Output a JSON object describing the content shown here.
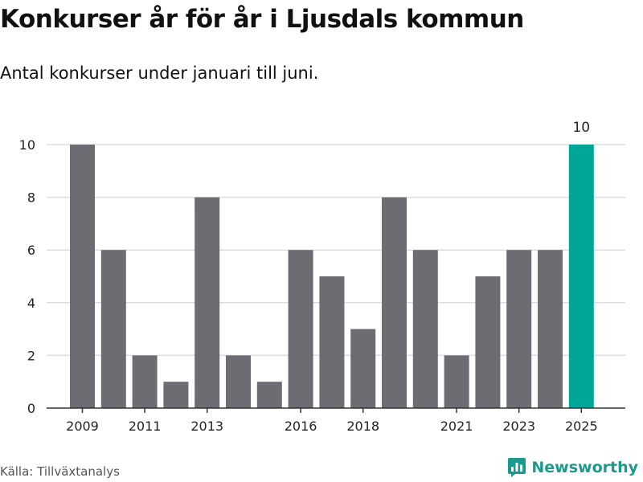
{
  "header": {
    "title": "Konkurser år för år i Ljusdals kommun",
    "subtitle": "Antal konkurser under januari till juni."
  },
  "footer": {
    "source": "Källa: Tillväxtanalys",
    "brand": "Newsworthy",
    "brand_icon": "newsworthy-logo-icon"
  },
  "colors": {
    "bar": "#6d6c72",
    "highlight": "#00a697",
    "grid": "#dddddd",
    "axis": "#333333",
    "brand": "#1a9a8f"
  },
  "chart_data": {
    "type": "bar",
    "categories": [
      "2009",
      "2010",
      "2011",
      "2012",
      "2013",
      "2014",
      "2015",
      "2016",
      "2017",
      "2018",
      "2019",
      "2020",
      "2021",
      "2022",
      "2023",
      "2024",
      "2025"
    ],
    "values": [
      10,
      6,
      2,
      1,
      8,
      2,
      1,
      6,
      5,
      3,
      8,
      6,
      2,
      5,
      6,
      6,
      10
    ],
    "x_tick_labels": [
      "2009",
      "2011",
      "2013",
      "2016",
      "2018",
      "2021",
      "2023",
      "2025"
    ],
    "y_ticks": [
      0,
      2,
      4,
      6,
      8,
      10
    ],
    "ylim": [
      0,
      10
    ],
    "highlight_index": 16,
    "highlight_label": "10",
    "grid": true,
    "title": "Konkurser år för år i Ljusdals kommun",
    "xlabel": "",
    "ylabel": ""
  }
}
